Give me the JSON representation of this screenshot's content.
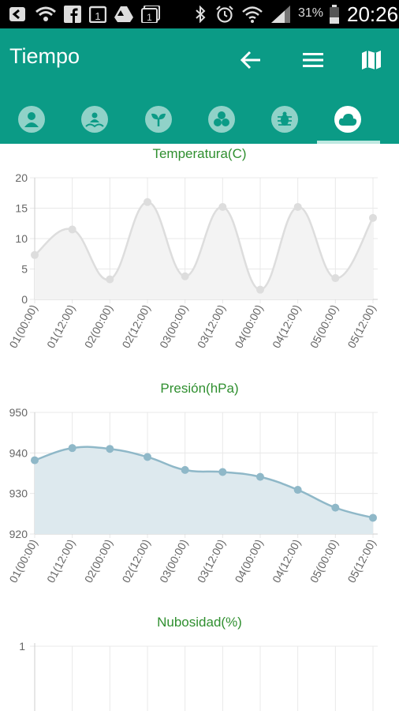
{
  "status_bar": {
    "battery": "31%",
    "time": "20:26",
    "icons": [
      "back-notification-icon",
      "wifi-notification-icon",
      "facebook-icon",
      "calendar-icon",
      "drive-icon",
      "calendar-icon",
      "bluetooth-icon",
      "alarm-icon",
      "wifi-icon",
      "signal-icon",
      "battery-icon"
    ]
  },
  "app_bar": {
    "title": "Tiempo",
    "actions": [
      "back-arrow-icon",
      "menu-icon",
      "map-icon"
    ]
  },
  "tabs": [
    {
      "icon": "person-icon",
      "active": false
    },
    {
      "icon": "farm-icon",
      "active": false
    },
    {
      "icon": "plant-icon",
      "active": false
    },
    {
      "icon": "disease-icon",
      "active": false
    },
    {
      "icon": "bug-icon",
      "active": false
    },
    {
      "icon": "cloud-icon",
      "active": true
    }
  ],
  "colors": {
    "accent": "#0b9b86",
    "chart_title": "#2f8f2f"
  },
  "chart_data": [
    {
      "type": "area",
      "title": "Temperatura(C)",
      "categories": [
        "01(00:00)",
        "01(12:00)",
        "02(00:00)",
        "02(12:00)",
        "03(00:00)",
        "03(12:00)",
        "04(00:00)",
        "04(12:00)",
        "05(00:00)",
        "05(12:00)"
      ],
      "values": [
        7.3,
        11.5,
        3.3,
        16,
        3.8,
        15.2,
        1.6,
        15.2,
        3.5,
        13.4
      ],
      "ylim": [
        0,
        20
      ],
      "yticks": [
        "0",
        "5",
        "10",
        "15",
        "20"
      ],
      "grid": true,
      "color": "#dddddd"
    },
    {
      "type": "area",
      "title": "Presión(hPa)",
      "categories": [
        "01(00:00)",
        "01(12:00)",
        "02(00:00)",
        "02(12:00)",
        "03(00:00)",
        "03(12:00)",
        "04(00:00)",
        "04(12:00)",
        "05(00:00)",
        "05(12:00)"
      ],
      "values": [
        938.2,
        941.2,
        941,
        939,
        935.8,
        935.3,
        934.1,
        930.9,
        926.5,
        924
      ],
      "ylim": [
        920,
        950
      ],
      "yticks": [
        "920",
        "930",
        "940",
        "950"
      ],
      "grid": true,
      "color": "#8fb8c8"
    },
    {
      "type": "line",
      "title": "Nubosidad(%)",
      "categories": [],
      "values": [],
      "yticks": [
        "1"
      ],
      "grid": true
    }
  ]
}
